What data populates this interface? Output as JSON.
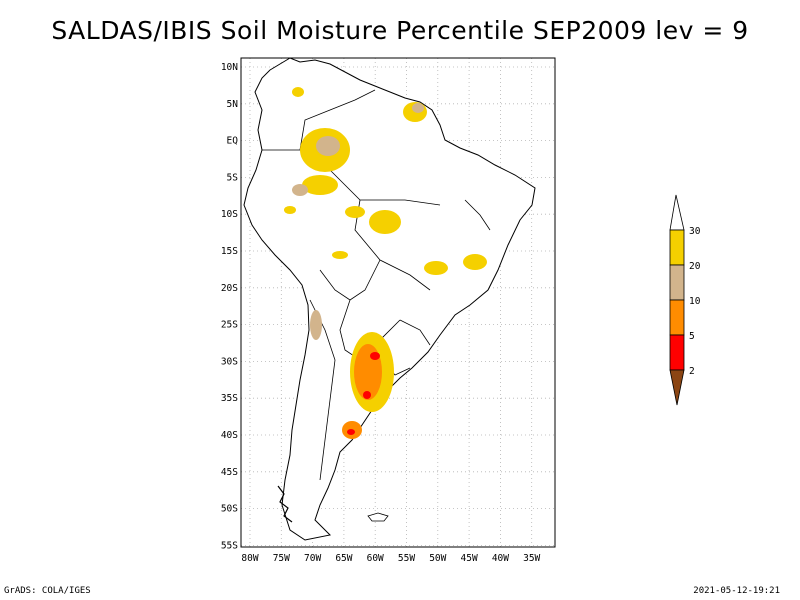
{
  "title": "SALDAS/IBIS Soil Moisture Percentile SEP2009 lev = 9",
  "lat_ticks": [
    "10N",
    "5N",
    "EQ",
    "5S",
    "10S",
    "15S",
    "20S",
    "25S",
    "30S",
    "35S",
    "40S",
    "45S",
    "50S",
    "55S"
  ],
  "lon_ticks": [
    "80W",
    "75W",
    "70W",
    "65W",
    "60W",
    "55W",
    "50W",
    "45W",
    "40W",
    "35W"
  ],
  "legend": {
    "labels": [
      "30",
      "20",
      "10",
      "5",
      "2"
    ],
    "colors": {
      "above_30": "#ffffff",
      "20_30": "#f5d000",
      "10_20": "#d2b48c",
      "5_10": "#ff8c00",
      "2_5": "#ff0000",
      "below_2": "#8b4513"
    }
  },
  "footer": {
    "left": "GrADS: COLA/IGES",
    "right": "2021-05-12-19:21"
  }
}
